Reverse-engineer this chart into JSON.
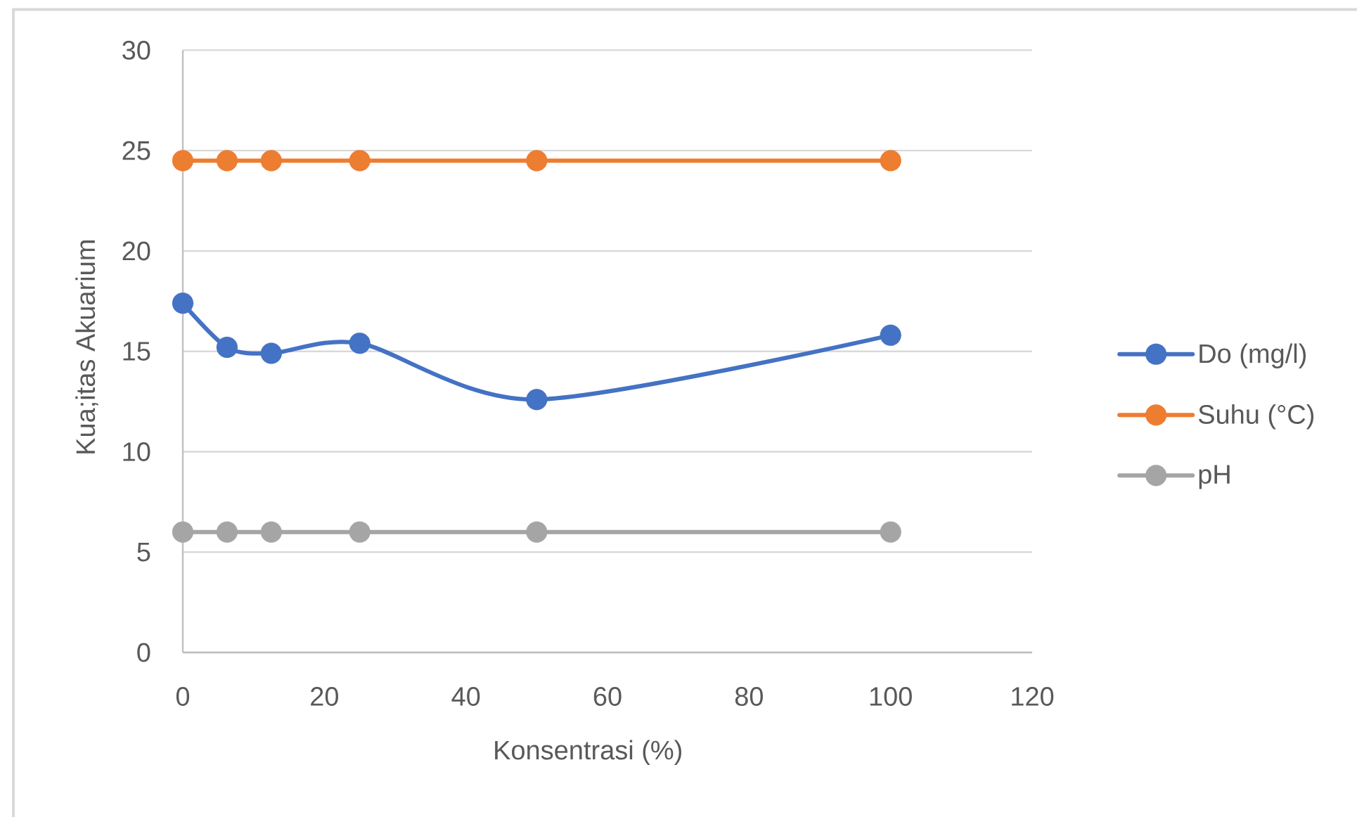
{
  "chart_data": {
    "type": "line",
    "xlabel": "Konsentrasi (%)",
    "ylabel": "Kua;itas Akuarium",
    "x": [
      0,
      6.25,
      12.5,
      25,
      50,
      100
    ],
    "series": [
      {
        "name": "Do (mg/l)",
        "color": "#4472c4",
        "values": [
          17.4,
          15.2,
          14.9,
          15.4,
          12.6,
          15.8
        ]
      },
      {
        "name": "Suhu (°C)",
        "color": "#ed7d31",
        "values": [
          24.5,
          24.5,
          24.5,
          24.5,
          24.5,
          24.5
        ]
      },
      {
        "name": "pH",
        "color": "#a5a5a5",
        "values": [
          6,
          6,
          6,
          6,
          6,
          6
        ]
      }
    ],
    "xlim": [
      0,
      120
    ],
    "xticks": [
      0,
      20,
      40,
      60,
      80,
      100,
      120
    ],
    "ylim": [
      0,
      30
    ],
    "yticks": [
      0,
      5,
      10,
      15,
      20,
      25,
      30
    ],
    "grid": "y",
    "legend": "right",
    "marker": "circle",
    "line_style": "solid"
  }
}
